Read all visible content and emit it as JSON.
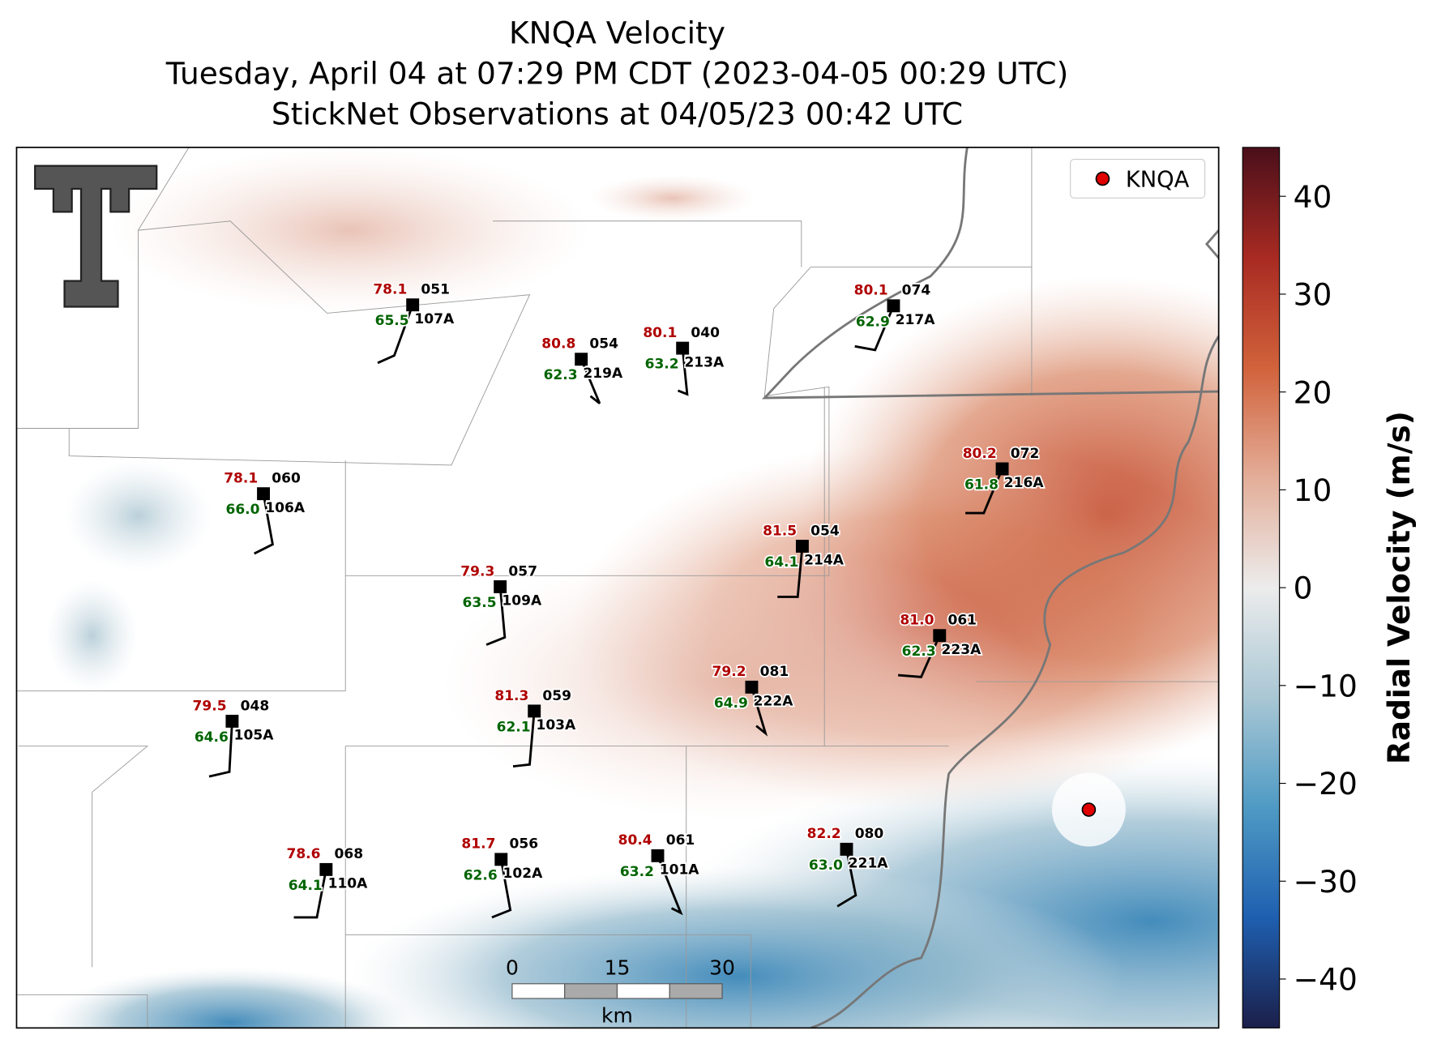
{
  "title": [
    "KNQA Velocity",
    "Tuesday, April 04 at 07:29 PM CDT (2023-04-05 00:29 UTC)",
    "StickNet Observations at 04/05/23 00:42 UTC"
  ],
  "legend": {
    "label": "KNQA",
    "color": "#e00000"
  },
  "scalebar": {
    "labels": [
      "0",
      "15",
      "30"
    ],
    "unit": "km"
  },
  "colorbar": {
    "label": "Radial Velocity (m/s)",
    "lim": [
      -45,
      45
    ],
    "colors": [
      "#1b1f4a",
      "#1f5fb0",
      "#4e9ac4",
      "#a9c7d4",
      "#ececec",
      "#e3ad98",
      "#d1623b",
      "#a82a22",
      "#4a0f1a"
    ],
    "ticks": [
      {
        "value": -40,
        "label": "−40"
      },
      {
        "value": -30,
        "label": "−30"
      },
      {
        "value": -20,
        "label": "−20"
      },
      {
        "value": -10,
        "label": "−10"
      },
      0,
      10,
      20,
      30,
      40
    ]
  },
  "stations": [
    {
      "temp": "78.1",
      "dew": "65.5",
      "code": "051",
      "id": "107A"
    },
    {
      "temp": "80.8",
      "dew": "62.3",
      "code": "054",
      "id": "219A"
    },
    {
      "temp": "80.1",
      "dew": "63.2",
      "code": "040",
      "id": "213A"
    },
    {
      "temp": "80.1",
      "dew": "62.9",
      "code": "074",
      "id": "217A"
    },
    {
      "temp": "78.1",
      "dew": "66.0",
      "code": "060",
      "id": "106A"
    },
    {
      "temp": "80.2",
      "dew": "61.8",
      "code": "072",
      "id": "216A"
    },
    {
      "temp": "81.5",
      "dew": "64.1",
      "code": "054",
      "id": "214A"
    },
    {
      "temp": "79.3",
      "dew": "63.5",
      "code": "057",
      "id": "109A"
    },
    {
      "temp": "81.0",
      "dew": "62.3",
      "code": "061",
      "id": "223A"
    },
    {
      "temp": "79.2",
      "dew": "64.9",
      "code": "081",
      "id": "222A"
    },
    {
      "temp": "79.5",
      "dew": "64.6",
      "code": "048",
      "id": "105A"
    },
    {
      "temp": "81.3",
      "dew": "62.1",
      "code": "059",
      "id": "103A"
    },
    {
      "temp": "78.6",
      "dew": "64.1",
      "code": "068",
      "id": "110A"
    },
    {
      "temp": "81.7",
      "dew": "62.6",
      "code": "056",
      "id": "102A"
    },
    {
      "temp": "80.4",
      "dew": "63.2",
      "code": "061",
      "id": "101A"
    },
    {
      "temp": "82.2",
      "dew": "63.0",
      "code": "080",
      "id": "221A"
    }
  ]
}
